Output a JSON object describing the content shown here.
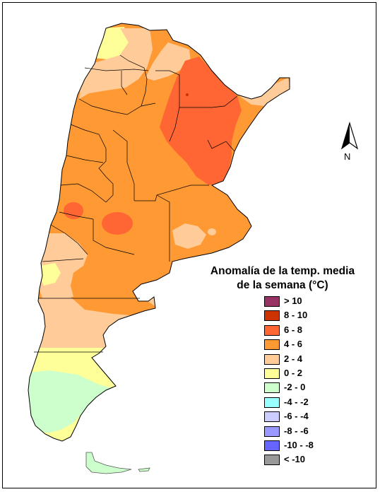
{
  "legend": {
    "title_line1": "Anomalía de la temp. media",
    "title_line2": "de la semana (°C)",
    "items": [
      {
        "label": "> 10",
        "color": "#993366"
      },
      {
        "label": "8 - 10",
        "color": "#cc3300"
      },
      {
        "label": "6 - 8",
        "color": "#ff6633"
      },
      {
        "label": "4 - 6",
        "color": "#ff9933"
      },
      {
        "label": "2 - 4",
        "color": "#ffcc99"
      },
      {
        "label": "0 - 2",
        "color": "#ffff99"
      },
      {
        "label": "-2 - 0",
        "color": "#ccffcc"
      },
      {
        "label": "-4 - -2",
        "color": "#99ffff"
      },
      {
        "label": "-6 - -4",
        "color": "#ccccff"
      },
      {
        "label": "-8 - -6",
        "color": "#9999ff"
      },
      {
        "label": "-10 - -8",
        "color": "#6666ff"
      },
      {
        "label": "< -10",
        "color": "#999999"
      }
    ]
  },
  "north_arrow": {
    "label": "N"
  },
  "map": {
    "country": "Argentina",
    "colors": {
      "c_6_8": "#ff6633",
      "c_4_6": "#ff9933",
      "c_2_4": "#ffcc99",
      "c_0_2": "#ffff99",
      "c_m2_0": "#ccffcc",
      "c_8_10": "#cc3300"
    }
  }
}
